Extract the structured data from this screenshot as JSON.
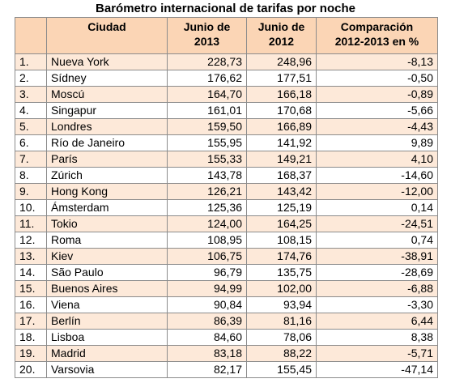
{
  "title": "Barómetro internacional de tarifas por noche",
  "headers": {
    "rank": "",
    "city": "Ciudad",
    "june2013": [
      "Junio de",
      "2013"
    ],
    "june2012": [
      "Junio de",
      "2012"
    ],
    "comparison": [
      "Comparación",
      "2012-2013 en %"
    ]
  },
  "rows": [
    {
      "rank": "1.",
      "city": "Nueva York",
      "june2013": "228,73",
      "june2012": "248,96",
      "comparison": "-8,13"
    },
    {
      "rank": "2.",
      "city": "Sídney",
      "june2013": "176,62",
      "june2012": "177,51",
      "comparison": "-0,50"
    },
    {
      "rank": "3.",
      "city": "Moscú",
      "june2013": "164,70",
      "june2012": "166,18",
      "comparison": "-0,89"
    },
    {
      "rank": "4.",
      "city": "Singapur",
      "june2013": "161,01",
      "june2012": "170,68",
      "comparison": "-5,66"
    },
    {
      "rank": "5.",
      "city": "Londres",
      "june2013": "159,50",
      "june2012": "166,89",
      "comparison": "-4,43"
    },
    {
      "rank": "6.",
      "city": "Río de Janeiro",
      "june2013": "155,95",
      "june2012": "141,92",
      "comparison": "9,89"
    },
    {
      "rank": "7.",
      "city": "París",
      "june2013": "155,33",
      "june2012": "149,21",
      "comparison": "4,10"
    },
    {
      "rank": "8.",
      "city": "Zúrich",
      "june2013": "143,78",
      "june2012": "168,37",
      "comparison": "-14,60"
    },
    {
      "rank": "9.",
      "city": "Hong Kong",
      "june2013": "126,21",
      "june2012": "143,42",
      "comparison": "-12,00"
    },
    {
      "rank": "10.",
      "city": "Ámsterdam",
      "june2013": "125,36",
      "june2012": "125,19",
      "comparison": "0,14"
    },
    {
      "rank": "11.",
      "city": "Tokio",
      "june2013": "124,00",
      "june2012": "164,25",
      "comparison": "-24,51"
    },
    {
      "rank": "12.",
      "city": "Roma",
      "june2013": "108,95",
      "june2012": "108,15",
      "comparison": "0,74"
    },
    {
      "rank": "13.",
      "city": "Kiev",
      "june2013": "106,75",
      "june2012": "174,76",
      "comparison": "-38,91"
    },
    {
      "rank": "14.",
      "city": "São Paulo",
      "june2013": "96,79",
      "june2012": "135,75",
      "comparison": "-28,69"
    },
    {
      "rank": "15.",
      "city": "Buenos Aires",
      "june2013": "94,99",
      "june2012": "102,00",
      "comparison": "-6,88"
    },
    {
      "rank": "16.",
      "city": "Viena",
      "june2013": "90,84",
      "june2012": "93,94",
      "comparison": "-3,30"
    },
    {
      "rank": "17.",
      "city": "Berlín",
      "june2013": "86,39",
      "june2012": "81,16",
      "comparison": "6,44"
    },
    {
      "rank": "18.",
      "city": "Lisboa",
      "june2013": "84,60",
      "june2012": "78,06",
      "comparison": "8,38"
    },
    {
      "rank": "19.",
      "city": "Madrid",
      "june2013": "83,18",
      "june2012": "88,22",
      "comparison": "-5,71"
    },
    {
      "rank": "20.",
      "city": "Varsovia",
      "june2013": "82,17",
      "june2012": "155,45",
      "comparison": "-47,14"
    }
  ],
  "colors": {
    "header_bg": "#fbd5b5",
    "band_bg": "#fde9d9",
    "plain_bg": "#ffffff",
    "border": "#8c8c8c"
  }
}
